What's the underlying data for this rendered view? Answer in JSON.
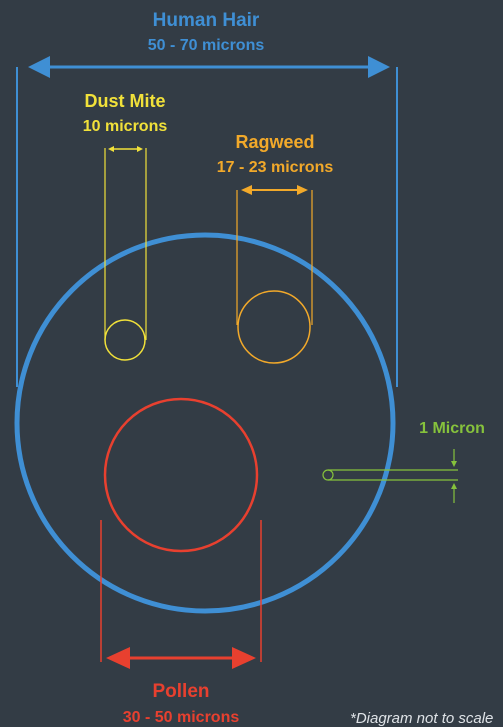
{
  "colors": {
    "background": "#333c45",
    "hair": "#3f8fd4",
    "dust_mite": "#f1e13a",
    "ragweed": "#f2a92a",
    "pollen": "#e8402f",
    "micron": "#86c23c",
    "note": "#dfe3e7"
  },
  "labels": {
    "hair_title": "Human Hair",
    "hair_size": "50 - 70 microns",
    "dust_mite_title": "Dust Mite",
    "dust_mite_size": "10 microns",
    "ragweed_title": "Ragweed",
    "ragweed_size": "17 - 23 microns",
    "micron_title": "1 Micron",
    "pollen_title": "Pollen",
    "pollen_size": "30 - 50 microns",
    "footnote": "*Diagram not to scale"
  }
}
